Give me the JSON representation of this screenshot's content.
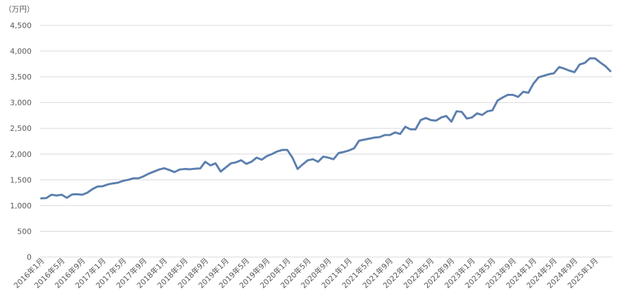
{
  "chart_data": {
    "type": "line",
    "unit_label": "（万円）",
    "ylim": [
      0,
      4500
    ],
    "y_ticks": [
      "0",
      "500",
      "1,000",
      "1,500",
      "2,000",
      "2,500",
      "3,000",
      "3,500",
      "4,000",
      "4,500"
    ],
    "y_tick_values": [
      0,
      500,
      1000,
      1500,
      2000,
      2500,
      3000,
      3500,
      4000,
      4500
    ],
    "grid": true,
    "line_color": "#5B7FAE",
    "x_tick_labels": [
      "2016年1月",
      "2016年5月",
      "2016年9月",
      "2017年1月",
      "2017年5月",
      "2017年9月",
      "2018年1月",
      "2018年5月",
      "2018年9月",
      "2019年1月",
      "2019年5月",
      "2019年9月",
      "2020年1月",
      "2020年5月",
      "2020年9月",
      "2021年1月",
      "2021年5月",
      "2021年9月",
      "2022年1月",
      "2022年5月",
      "2022年9月",
      "2023年1月",
      "2023年5月",
      "2023年9月",
      "2024年1月",
      "2024年5月",
      "2024年9月",
      "2025年1月"
    ],
    "series": [
      {
        "values": [
          1140,
          1145,
          1210,
          1195,
          1210,
          1150,
          1215,
          1220,
          1210,
          1250,
          1320,
          1370,
          1375,
          1410,
          1430,
          1445,
          1480,
          1500,
          1530,
          1530,
          1570,
          1620,
          1660,
          1700,
          1725,
          1690,
          1650,
          1700,
          1710,
          1705,
          1715,
          1720,
          1850,
          1780,
          1820,
          1660,
          1740,
          1820,
          1840,
          1880,
          1810,
          1850,
          1930,
          1890,
          1960,
          2000,
          2050,
          2080,
          2080,
          1930,
          1710,
          1800,
          1880,
          1900,
          1850,
          1950,
          1930,
          1900,
          2020,
          2040,
          2070,
          2110,
          2260,
          2280,
          2300,
          2320,
          2330,
          2370,
          2370,
          2420,
          2390,
          2530,
          2480,
          2480,
          2660,
          2700,
          2660,
          2650,
          2710,
          2740,
          2630,
          2830,
          2820,
          2690,
          2710,
          2790,
          2760,
          2830,
          2850,
          3040,
          3100,
          3150,
          3150,
          3110,
          3210,
          3190,
          3370,
          3490,
          3520,
          3550,
          3570,
          3690,
          3660,
          3620,
          3590,
          3740,
          3770,
          3860,
          3860,
          3780,
          3710,
          3610
        ]
      }
    ]
  }
}
